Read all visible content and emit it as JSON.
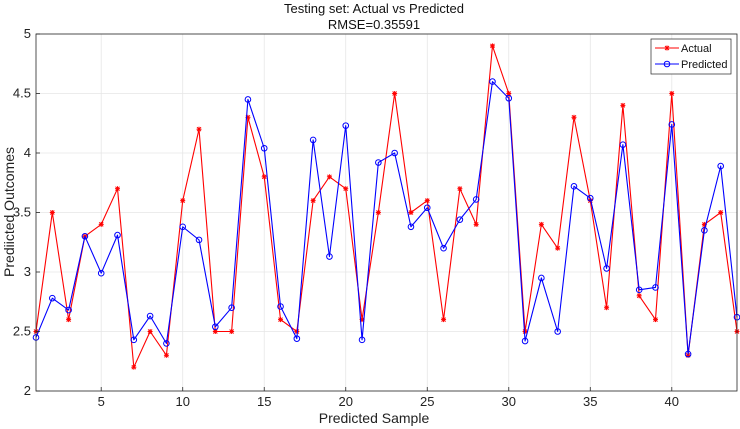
{
  "chart_data": {
    "type": "line",
    "title": "Testing set: Actual vs Predicted",
    "subtitle": "RMSE=0.35591",
    "xlabel": "Predicted Sample",
    "ylabel": "Prediicted Outcomes",
    "xlim": [
      1,
      44
    ],
    "ylim": [
      2,
      5
    ],
    "xticks": [
      5,
      10,
      15,
      20,
      25,
      30,
      35,
      40
    ],
    "yticks": [
      2,
      2.5,
      3,
      3.5,
      4,
      4.5,
      5
    ],
    "grid": true,
    "legend_position": "top-right",
    "x": [
      1,
      2,
      3,
      4,
      5,
      6,
      7,
      8,
      9,
      10,
      11,
      12,
      13,
      14,
      15,
      16,
      17,
      18,
      19,
      20,
      21,
      22,
      23,
      24,
      25,
      26,
      27,
      28,
      29,
      30,
      31,
      32,
      33,
      34,
      35,
      36,
      37,
      38,
      39,
      40,
      41,
      42,
      43,
      44
    ],
    "series": [
      {
        "name": "Actual",
        "color": "#ff0000",
        "marker": "star",
        "values": [
          2.5,
          3.5,
          2.6,
          3.3,
          3.4,
          3.7,
          2.2,
          2.5,
          2.3,
          3.6,
          4.2,
          2.5,
          2.5,
          4.3,
          3.8,
          2.6,
          2.5,
          3.6,
          3.8,
          3.7,
          2.6,
          3.5,
          4.5,
          3.5,
          3.6,
          2.6,
          3.7,
          3.4,
          4.9,
          4.5,
          2.5,
          3.4,
          3.2,
          4.3,
          3.6,
          2.7,
          4.4,
          2.8,
          2.6,
          4.5,
          2.3,
          3.4,
          3.5,
          2.5
        ]
      },
      {
        "name": "Predicted",
        "color": "#0000ff",
        "marker": "circle",
        "values": [
          2.45,
          2.78,
          2.68,
          3.3,
          2.99,
          3.31,
          2.43,
          2.63,
          2.4,
          3.38,
          3.27,
          2.54,
          2.7,
          4.45,
          4.04,
          2.71,
          2.44,
          4.11,
          3.13,
          4.23,
          2.43,
          3.92,
          4.0,
          3.38,
          3.54,
          3.2,
          3.44,
          3.61,
          4.6,
          4.46,
          2.42,
          2.95,
          2.5,
          3.72,
          3.62,
          3.03,
          4.07,
          2.85,
          2.87,
          4.24,
          2.31,
          3.35,
          3.89,
          2.62
        ]
      }
    ]
  }
}
